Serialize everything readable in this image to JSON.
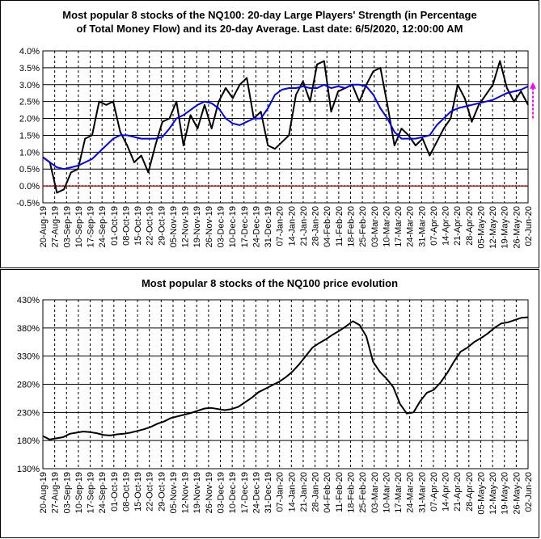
{
  "chart_data": [
    {
      "type": "line",
      "title_line1": "Most popular 8 stocks of the NQ100: 20-day Large Players' Strength (in Percentage",
      "title_line2": "of Total Money Flow) and its 20-day Average. Last date: 6/5/2020, 12:00:00 AM",
      "y_ticks": [
        "4.0%",
        "3.5%",
        "3.0%",
        "2.5%",
        "2.0%",
        "1.5%",
        "1.0%",
        "0.5%",
        "0.0%",
        "-0.5%"
      ],
      "ylim": [
        -0.5,
        4.0
      ],
      "x_ticks": [
        "20-Aug-19",
        "27-Aug-19",
        "03-Sep-19",
        "10-Sep-19",
        "17-Sep-19",
        "24-Sep-19",
        "01-Oct-19",
        "08-Oct-19",
        "15-Oct-19",
        "22-Oct-19",
        "29-Oct-19",
        "05-Nov-19",
        "12-Nov-19",
        "19-Nov-19",
        "26-Nov-19",
        "03-Dec-19",
        "10-Dec-19",
        "17-Dec-19",
        "24-Dec-19",
        "31-Dec-19",
        "07-Jan-20",
        "14-Jan-20",
        "21-Jan-20",
        "28-Jan-20",
        "04-Feb-20",
        "11-Feb-20",
        "18-Feb-20",
        "25-Feb-20",
        "03-Mar-20",
        "10-Mar-20",
        "17-Mar-20",
        "24-Mar-20",
        "31-Mar-20",
        "07-Apr-20",
        "14-Apr-20",
        "21-Apr-20",
        "28-Apr-20",
        "05-May-20",
        "12-May-20",
        "19-May-20",
        "26-May-20",
        "02-Jun-20"
      ],
      "grid": true,
      "colors": {
        "strength": "#000000",
        "average": "#0000ff",
        "zero_line": "#ff0000",
        "arrow": "#ff00ff"
      },
      "series": [
        {
          "values": [
            0.85,
            0.7,
            -0.2,
            -0.1,
            0.4,
            0.5,
            1.4,
            1.5,
            2.5,
            2.4,
            2.5,
            1.6,
            1.2,
            0.7,
            0.9,
            0.4,
            1.2,
            1.9,
            2.0,
            2.5,
            1.2,
            2.1,
            1.7,
            2.4,
            1.7,
            2.5,
            2.9,
            2.6,
            3.0,
            3.2,
            2.0,
            2.2,
            1.2,
            1.1,
            1.3,
            1.5,
            2.7,
            3.1,
            2.5,
            3.6,
            3.7,
            2.2,
            2.8,
            2.9,
            3.0,
            2.5,
            3.0,
            3.4,
            3.5,
            2.4,
            1.2,
            1.7,
            1.5,
            1.2,
            1.4,
            0.9,
            1.3,
            1.7,
            2.0,
            3.0,
            2.6,
            1.9,
            2.4,
            2.7,
            3.0,
            3.7,
            2.9,
            2.5,
            2.8,
            2.4
          ]
        },
        {
          "values": [
            0.85,
            0.7,
            0.55,
            0.5,
            0.55,
            0.6,
            0.7,
            0.8,
            1.0,
            1.2,
            1.4,
            1.5,
            1.5,
            1.45,
            1.4,
            1.4,
            1.4,
            1.45,
            1.7,
            2.0,
            2.1,
            2.25,
            2.4,
            2.5,
            2.45,
            2.3,
            2.0,
            1.85,
            1.8,
            1.9,
            2.0,
            2.0,
            2.3,
            2.7,
            2.85,
            2.9,
            2.9,
            2.95,
            2.9,
            2.9,
            3.0,
            2.9,
            2.95,
            2.9,
            3.0,
            3.0,
            2.95,
            2.7,
            2.3,
            2.0,
            1.6,
            1.4,
            1.4,
            1.4,
            1.45,
            1.5,
            1.8,
            2.0,
            2.2,
            2.3,
            2.35,
            2.4,
            2.45,
            2.5,
            2.55,
            2.65,
            2.75,
            2.8,
            2.85,
            2.95
          ]
        }
      ]
    },
    {
      "type": "line",
      "title": "Most popular 8 stocks of the NQ100 price evolution",
      "y_ticks": [
        "430%",
        "380%",
        "330%",
        "280%",
        "230%",
        "180%",
        "130%"
      ],
      "ylim": [
        130,
        430
      ],
      "x_ticks": [
        "20-Aug-19",
        "27-Aug-19",
        "03-Sep-19",
        "10-Sep-19",
        "17-Sep-19",
        "24-Sep-19",
        "01-Oct-19",
        "08-Oct-19",
        "15-Oct-19",
        "22-Oct-19",
        "29-Oct-19",
        "05-Nov-19",
        "12-Nov-19",
        "19-Nov-19",
        "26-Nov-19",
        "03-Dec-19",
        "10-Dec-19",
        "17-Dec-19",
        "24-Dec-19",
        "31-Dec-19",
        "07-Jan-20",
        "14-Jan-20",
        "21-Jan-20",
        "28-Jan-20",
        "04-Feb-20",
        "11-Feb-20",
        "18-Feb-20",
        "25-Feb-20",
        "03-Mar-20",
        "10-Mar-20",
        "17-Mar-20",
        "24-Mar-20",
        "31-Mar-20",
        "07-Apr-20",
        "14-Apr-20",
        "21-Apr-20",
        "28-Apr-20",
        "05-May-20",
        "12-May-20",
        "19-May-20",
        "26-May-20",
        "02-Jun-20"
      ],
      "grid": true,
      "colors": {
        "price": "#000000"
      },
      "series": [
        {
          "values": [
            188,
            182,
            184,
            186,
            192,
            194,
            196,
            195,
            193,
            190,
            189,
            191,
            192,
            194,
            197,
            200,
            204,
            210,
            214,
            220,
            223,
            226,
            229,
            233,
            237,
            238,
            236,
            234,
            236,
            240,
            248,
            256,
            266,
            272,
            278,
            284,
            292,
            302,
            315,
            330,
            345,
            353,
            360,
            368,
            375,
            383,
            392,
            385,
            365,
            320,
            302,
            290,
            275,
            245,
            228,
            230,
            250,
            265,
            270,
            283,
            300,
            320,
            338,
            345,
            355,
            362,
            370,
            380,
            388,
            390,
            394,
            398,
            399
          ]
        }
      ]
    }
  ]
}
